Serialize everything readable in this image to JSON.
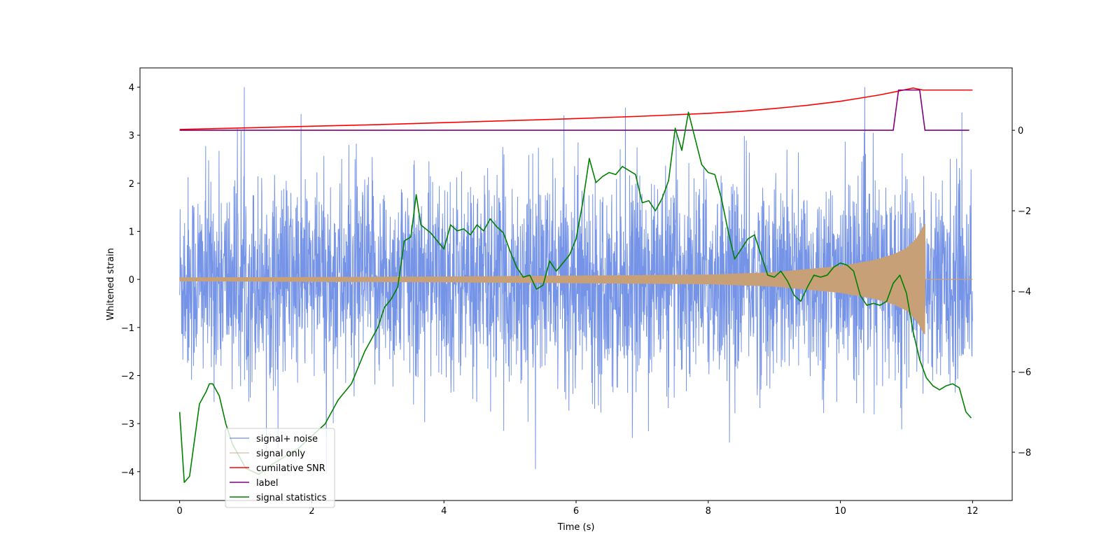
{
  "chart_data": {
    "type": "line",
    "title": "",
    "xlabel": "Time (s)",
    "ylabel": "Whitened strain",
    "y2label": "",
    "xlim": [
      -0.6,
      12.6
    ],
    "ylim": [
      -4.6,
      4.4
    ],
    "y2lim": [
      -9.2,
      1.55
    ],
    "xticks": [
      0,
      2,
      4,
      6,
      8,
      10,
      12
    ],
    "yticks": [
      -4,
      -3,
      -2,
      -1,
      0,
      1,
      2,
      3,
      4
    ],
    "y2ticks": [
      -8,
      -6,
      -4,
      -2,
      0
    ],
    "xtick_labels": [
      "0",
      "2",
      "4",
      "6",
      "8",
      "10",
      "12"
    ],
    "ytick_labels": [
      "−4",
      "−3",
      "−2",
      "−1",
      "0",
      "1",
      "2",
      "3",
      "4"
    ],
    "y2tick_labels": [
      "−8",
      "−6",
      "−4",
      "−2",
      "0"
    ],
    "grid": false,
    "legend_position": "lower-left",
    "series": [
      {
        "name": "signal+ noise",
        "axis": "left",
        "color": "#6f8ee6",
        "kind": "noise-band",
        "x_range": [
          0,
          12
        ],
        "std": 1.05
      },
      {
        "name": "signal only",
        "axis": "left",
        "color": "#c8a078",
        "kind": "chirp",
        "x_range": [
          0,
          11.28
        ],
        "envelope_points": [
          [
            0,
            0.04
          ],
          [
            4,
            0.06
          ],
          [
            8,
            0.1
          ],
          [
            9,
            0.15
          ],
          [
            10,
            0.28
          ],
          [
            10.5,
            0.4
          ],
          [
            10.8,
            0.52
          ],
          [
            11,
            0.65
          ],
          [
            11.15,
            0.85
          ],
          [
            11.25,
            1.1
          ],
          [
            11.28,
            1.15
          ]
        ],
        "tail_x": [
          11.28,
          12
        ]
      },
      {
        "name": "cumilative SNR",
        "axis": "right",
        "color": "#ff0000",
        "x": [
          0,
          1,
          2,
          3,
          4,
          5,
          6,
          7,
          8,
          8.5,
          9,
          9.5,
          10,
          10.3,
          10.6,
          10.9,
          11.1,
          11.25,
          11.28,
          12
        ],
        "values": [
          0.02,
          0.06,
          0.1,
          0.14,
          0.19,
          0.24,
          0.29,
          0.35,
          0.42,
          0.47,
          0.54,
          0.62,
          0.72,
          0.8,
          0.88,
          0.98,
          1.05,
          1.0,
          1.0,
          1.0
        ]
      },
      {
        "name": "label",
        "axis": "right",
        "color": "#800080",
        "x": [
          0,
          10.8,
          10.88,
          11.2,
          11.28,
          11.95
        ],
        "values": [
          0,
          0,
          1,
          1,
          0,
          0
        ]
      },
      {
        "name": "signal statistics",
        "axis": "right",
        "color": "#008000",
        "x": [
          0,
          0.07,
          0.15,
          0.3,
          0.4,
          0.45,
          0.5,
          0.6,
          0.7,
          0.8,
          1.0,
          1.2,
          1.4,
          1.6,
          1.8,
          2.0,
          2.2,
          2.4,
          2.6,
          2.8,
          2.9,
          3.0,
          3.1,
          3.2,
          3.3,
          3.4,
          3.5,
          3.58,
          3.65,
          3.8,
          3.9,
          4.0,
          4.1,
          4.2,
          4.3,
          4.4,
          4.5,
          4.6,
          4.7,
          4.8,
          4.9,
          5.0,
          5.1,
          5.2,
          5.3,
          5.4,
          5.5,
          5.6,
          5.7,
          5.8,
          5.9,
          6.0,
          6.1,
          6.2,
          6.3,
          6.4,
          6.5,
          6.6,
          6.7,
          6.8,
          6.9,
          7.0,
          7.1,
          7.2,
          7.3,
          7.4,
          7.5,
          7.6,
          7.7,
          7.8,
          7.9,
          8.0,
          8.1,
          8.2,
          8.3,
          8.4,
          8.5,
          8.6,
          8.7,
          8.8,
          8.9,
          9.0,
          9.1,
          9.2,
          9.3,
          9.4,
          9.5,
          9.6,
          9.7,
          9.8,
          9.9,
          10.0,
          10.1,
          10.2,
          10.3,
          10.4,
          10.5,
          10.6,
          10.7,
          10.8,
          10.9,
          11.0,
          11.1,
          11.2,
          11.3,
          11.4,
          11.5,
          11.6,
          11.7,
          11.8,
          11.9,
          11.98
        ],
        "values": [
          -7.0,
          -8.75,
          -8.6,
          -6.8,
          -6.5,
          -6.3,
          -6.3,
          -6.6,
          -7.3,
          -7.8,
          -8.4,
          -8.55,
          -8.3,
          -8.1,
          -7.9,
          -7.6,
          -7.3,
          -6.7,
          -6.3,
          -5.5,
          -5.2,
          -4.9,
          -4.4,
          -4.2,
          -3.9,
          -2.75,
          -2.65,
          -1.6,
          -2.35,
          -2.55,
          -2.75,
          -2.95,
          -2.35,
          -2.5,
          -2.45,
          -2.6,
          -2.35,
          -2.5,
          -2.2,
          -2.4,
          -2.55,
          -3.0,
          -3.4,
          -3.65,
          -3.6,
          -3.95,
          -3.85,
          -3.25,
          -3.5,
          -3.3,
          -3.1,
          -2.7,
          -1.8,
          -0.7,
          -1.3,
          -1.15,
          -1.05,
          -1.1,
          -0.9,
          -1.0,
          -1.1,
          -1.8,
          -1.75,
          -2.0,
          -1.7,
          -1.25,
          0.05,
          -0.5,
          0.45,
          -0.2,
          -0.85,
          -1.05,
          -1.1,
          -1.7,
          -2.5,
          -3.2,
          -2.95,
          -2.7,
          -2.6,
          -3.1,
          -3.6,
          -3.65,
          -3.5,
          -3.75,
          -4.1,
          -4.25,
          -3.9,
          -3.6,
          -3.65,
          -3.6,
          -3.4,
          -3.3,
          -3.35,
          -3.5,
          -4.1,
          -4.35,
          -4.3,
          -4.35,
          -4.25,
          -3.8,
          -3.6,
          -4.05,
          -5.0,
          -5.7,
          -6.15,
          -6.35,
          -6.45,
          -6.35,
          -6.3,
          -6.4,
          -7.0,
          -7.15
        ]
      }
    ]
  }
}
